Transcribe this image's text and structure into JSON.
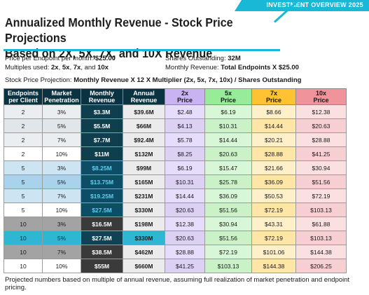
{
  "header": {
    "banner": "INVESTMENT OVERVIEW 2025"
  },
  "title": {
    "line1": "Annualized Monthly Revenue - Stock Price Projections",
    "line2": "Based on 2X, 5X, 7X, and 10X Revenue"
  },
  "params": {
    "price_label": "Price per Endpoint per month: ",
    "price_value": "$25.00",
    "shares_label": "Shares Outstanding: ",
    "shares_value": "32M",
    "mult_label": "Multiples used: ",
    "mult_m1": "2x",
    "mult_m2": "5x",
    "mult_m3": "7x",
    "mult_and": ", and ",
    "mult_m4": "10x",
    "rev_label": "Monthly Revenue: ",
    "rev_value": "Total Endpoints X $25.00",
    "formula_label": "Stock Price Projection: ",
    "formula_value": "Monthly Revenue X 12 X Multiplier (2x, 5x, 7x, 10x) / Shares Outstanding"
  },
  "table": {
    "headers": [
      "Endpoints\nper Client",
      "Market\nPenetration",
      "Monthly\nRevenue",
      "Annual\nRevenue",
      "2x\nPrice",
      "5x\nPrice",
      "7x\nPrice",
      "10x\nPrice"
    ],
    "rows": [
      [
        "2",
        "3%",
        "$3.3M",
        "$39.6M",
        "$2.48",
        "$6.19",
        "$8.66",
        "$12.38"
      ],
      [
        "2",
        "5%",
        "$5.5M",
        "$66M",
        "$4.13",
        "$10.31",
        "$14.44",
        "$20.63"
      ],
      [
        "2",
        "7%",
        "$7.7M",
        "$92.4M",
        "$5.78",
        "$14.44",
        "$20.21",
        "$28.88"
      ],
      [
        "2",
        "10%",
        "$11M",
        "$132M",
        "$8.25",
        "$20.63",
        "$28.88",
        "$41.25"
      ],
      [
        "5",
        "3%",
        "$8.25M",
        "$99M",
        "$6.19",
        "$15.47",
        "$21.66",
        "$30.94"
      ],
      [
        "5",
        "5%",
        "$13.75M",
        "$165M",
        "$10.31",
        "$25.78",
        "$36.09",
        "$51.56"
      ],
      [
        "5",
        "7%",
        "$19.25M",
        "$231M",
        "$14.44",
        "$36.09",
        "$50.53",
        "$72.19"
      ],
      [
        "5",
        "10%",
        "$27.5M",
        "$330M",
        "$20.63",
        "$51.56",
        "$72.19",
        "$103.13"
      ],
      [
        "10",
        "3%",
        "$16.5M",
        "$198M",
        "$12.38",
        "$30.94",
        "$43.31",
        "$61.88"
      ],
      [
        "10",
        "5%",
        "$27.5M",
        "$330M",
        "$20.63",
        "$51.56",
        "$72.19",
        "$103.13"
      ],
      [
        "10",
        "7%",
        "$38.5M",
        "$462M",
        "$28.88",
        "$72.19",
        "$101.06",
        "$144.38"
      ],
      [
        "10",
        "10%",
        "$55M",
        "$660M",
        "$41.25",
        "$103.13",
        "$144.38",
        "$206.25"
      ]
    ]
  },
  "footer": "Projected numbers based on multiple of annual revenue, assuming full realization of market penetration and endpoint pricing.",
  "colors": {
    "accent": "#19b8d6",
    "header_bg": [
      "#0b3240",
      "#0b3240",
      "#0b3240",
      "#0b3240",
      "#c9b3f0",
      "#96ec98",
      "#ffc233",
      "#f0939a"
    ],
    "header_fg": [
      "#ffffff",
      "#ffffff",
      "#ffffff",
      "#ffffff",
      "#1a1a1a",
      "#1a1a1a",
      "#1a1a1a",
      "#1a1a1a"
    ],
    "row_bg": [
      "#ebeef0",
      "#e1e6ea",
      "#ebeef0",
      "#ffffff",
      "#cde4f2",
      "#a9d3ec",
      "#cde4f2",
      "#ffffff",
      "#a3a3a3",
      "#2fb6d2",
      "#a3a3a3",
      "#ffffff"
    ],
    "monthly_bg": [
      "#0f3e4f",
      "#0f3e4f",
      "#0f3e4f",
      "#0f3e4f",
      "#0d4e66",
      "#0d4e66",
      "#0d4e66",
      "#0d4e66",
      "#3a3a3a",
      "#0f4255",
      "#3a3a3a",
      "#3a3a3a"
    ],
    "monthly_fg": [
      "#ffffff",
      "#ffffff",
      "#ffffff",
      "#ffffff",
      "#5ecff0",
      "#5ecff0",
      "#5ecff0",
      "#5ecff0",
      "#ffffff",
      "#ffffff",
      "#ffffff",
      "#ffffff"
    ],
    "annual_bg": "#ebebeb",
    "annual_bg_alt": "#2fb6d2",
    "price_bg": [
      [
        "#e6dcfb",
        "#d8f7d6",
        "#fff0c9",
        "#fbe0e2"
      ],
      [
        "#dcd0f5",
        "#c9f2c7",
        "#ffe6a6",
        "#f7cfd3"
      ]
    ]
  }
}
